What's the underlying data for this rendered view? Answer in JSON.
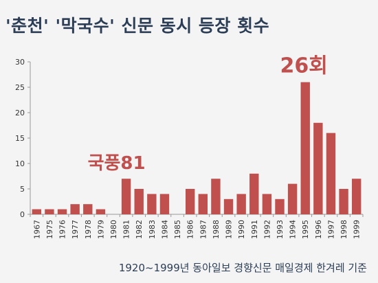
{
  "title": "'춘천' '막국수' 신문 동시 등장 횟수",
  "source": "1920~1999년 동아일보 경향신문 매일경제 한겨레 기준",
  "colors": {
    "bar": "#c0504d",
    "title": "#2c3e56",
    "annotation": "#c0504d"
  },
  "chart_data": {
    "type": "bar",
    "categories": [
      "1967",
      "1975",
      "1976",
      "1977",
      "1978",
      "1979",
      "1980",
      "1981",
      "1982",
      "1983",
      "1984",
      "1985",
      "1986",
      "1987",
      "1988",
      "1989",
      "1990",
      "1991",
      "1992",
      "1993",
      "1994",
      "1995",
      "1996",
      "1997",
      "1998",
      "1999"
    ],
    "values": [
      1,
      1,
      1,
      2,
      2,
      1,
      0,
      7,
      5,
      4,
      4,
      0,
      5,
      4,
      7,
      3,
      4,
      8,
      4,
      3,
      6,
      26,
      18,
      16,
      5,
      7
    ],
    "ylim": [
      0,
      30
    ],
    "yticks": [
      0,
      5,
      10,
      15,
      20,
      25,
      30
    ],
    "grid": false,
    "annotations": [
      {
        "text": "국풍81",
        "category": "1981"
      },
      {
        "text": "26회",
        "category": "1995"
      }
    ]
  }
}
